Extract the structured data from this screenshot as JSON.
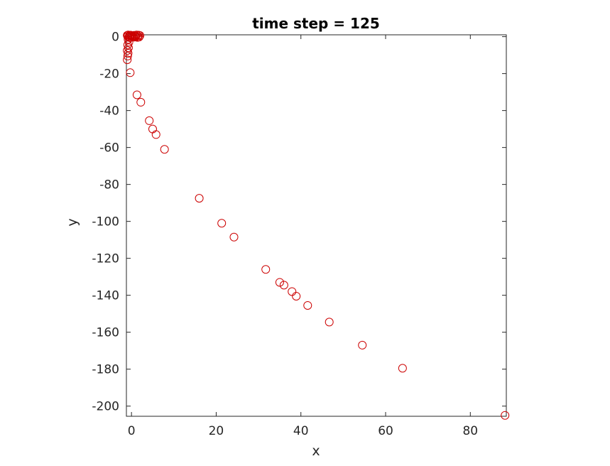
{
  "chart_data": {
    "type": "scatter",
    "title": "time step = 125",
    "xlabel": "x",
    "ylabel": "y",
    "xlim": [
      -1.2,
      88.5
    ],
    "ylim": [
      -205.5,
      1.0
    ],
    "xticks": [
      0,
      20,
      40,
      60,
      80
    ],
    "yticks": [
      0,
      -20,
      -40,
      -60,
      -80,
      -100,
      -120,
      -140,
      -160,
      -180,
      -200
    ],
    "grid": false,
    "marker": "open-circle",
    "marker_color": "#cc0000",
    "series": [
      {
        "points": [
          [
            -1.0,
            0.7
          ],
          [
            -0.8,
            0.9
          ],
          [
            -0.5,
            0.6
          ],
          [
            -0.3,
            0.4
          ],
          [
            -0.9,
            0.2
          ],
          [
            -0.6,
            -0.1
          ],
          [
            -0.2,
            0.8
          ],
          [
            0.0,
            0.5
          ],
          [
            0.3,
            0.2
          ],
          [
            0.6,
            0.7
          ],
          [
            0.9,
            0.3
          ],
          [
            1.2,
            0.9
          ],
          [
            1.5,
            0.4
          ],
          [
            1.8,
            -0.2
          ],
          [
            2.0,
            0.6
          ],
          [
            1.0,
            0.0
          ],
          [
            0.5,
            -0.3
          ],
          [
            0.2,
            0.0
          ],
          [
            1.4,
            -0.4
          ],
          [
            1.7,
            0.8
          ],
          [
            -0.4,
            -0.5
          ],
          [
            0.8,
            0.5
          ],
          [
            -0.8,
            -1.5
          ],
          [
            -0.6,
            -3.0
          ],
          [
            -0.9,
            -4.5
          ],
          [
            -0.7,
            -6.0
          ],
          [
            -1.0,
            -7.5
          ],
          [
            -0.8,
            -9.0
          ],
          [
            -0.9,
            -10.5
          ],
          [
            -1.0,
            -12.5
          ],
          [
            -0.3,
            -19.5
          ],
          [
            1.3,
            -31.5
          ],
          [
            2.2,
            -35.5
          ],
          [
            4.2,
            -45.5
          ],
          [
            5.0,
            -50.0
          ],
          [
            5.8,
            -53.0
          ],
          [
            7.8,
            -61.0
          ],
          [
            16.0,
            -87.5
          ],
          [
            21.3,
            -101.0
          ],
          [
            24.2,
            -108.5
          ],
          [
            31.7,
            -126.0
          ],
          [
            35.0,
            -133.0
          ],
          [
            36.0,
            -134.5
          ],
          [
            37.9,
            -138.0
          ],
          [
            38.9,
            -140.5
          ],
          [
            41.6,
            -145.5
          ],
          [
            46.7,
            -154.5
          ],
          [
            54.5,
            -167.0
          ],
          [
            64.0,
            -179.5
          ],
          [
            88.2,
            -205.0
          ]
        ]
      }
    ]
  }
}
